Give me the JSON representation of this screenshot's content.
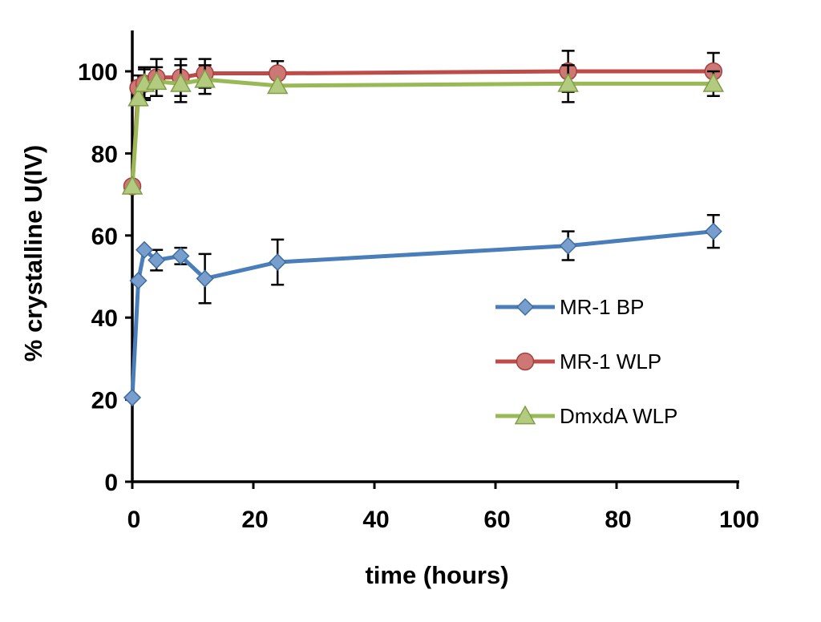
{
  "chart_data": {
    "type": "line",
    "title": "",
    "xlabel": "time (hours)",
    "ylabel": "% crystalline U(IV)",
    "xlim": [
      0,
      100
    ],
    "ylim": [
      0,
      110
    ],
    "xticks": [
      0,
      20,
      40,
      60,
      80,
      100
    ],
    "yticks": [
      0,
      20,
      40,
      60,
      80,
      100
    ],
    "grid": false,
    "legend_position": "center-right",
    "series": [
      {
        "name": "MR-1 BP",
        "color": "#4a7ebb",
        "marker": "diamond",
        "x": [
          0,
          1,
          2,
          4,
          8,
          12,
          24,
          72,
          96
        ],
        "y": [
          20.5,
          49,
          56.5,
          54,
          55,
          49.5,
          53.5,
          57.5,
          61
        ],
        "err": [
          0,
          0,
          0,
          2.5,
          2,
          6,
          5.5,
          3.5,
          4
        ]
      },
      {
        "name": "MR-1 WLP",
        "color": "#be4b48",
        "marker": "circle",
        "x": [
          0,
          1,
          2,
          4,
          8,
          12,
          24,
          72,
          96
        ],
        "y": [
          72,
          96,
          97,
          98.5,
          98.5,
          99.5,
          99.5,
          100,
          100
        ],
        "err": [
          0,
          3,
          4,
          4.5,
          4.5,
          3.5,
          3,
          5,
          4.5
        ]
      },
      {
        "name": "DmxdA WLP",
        "color": "#98b954",
        "marker": "triangle",
        "x": [
          0,
          1,
          2,
          4,
          8,
          12,
          24,
          72,
          96
        ],
        "y": [
          72,
          93.5,
          97,
          97.5,
          97,
          98,
          96.5,
          97,
          97
        ],
        "err": [
          0,
          0,
          3.5,
          3.5,
          4.5,
          3.5,
          0,
          4.5,
          3
        ]
      }
    ]
  }
}
